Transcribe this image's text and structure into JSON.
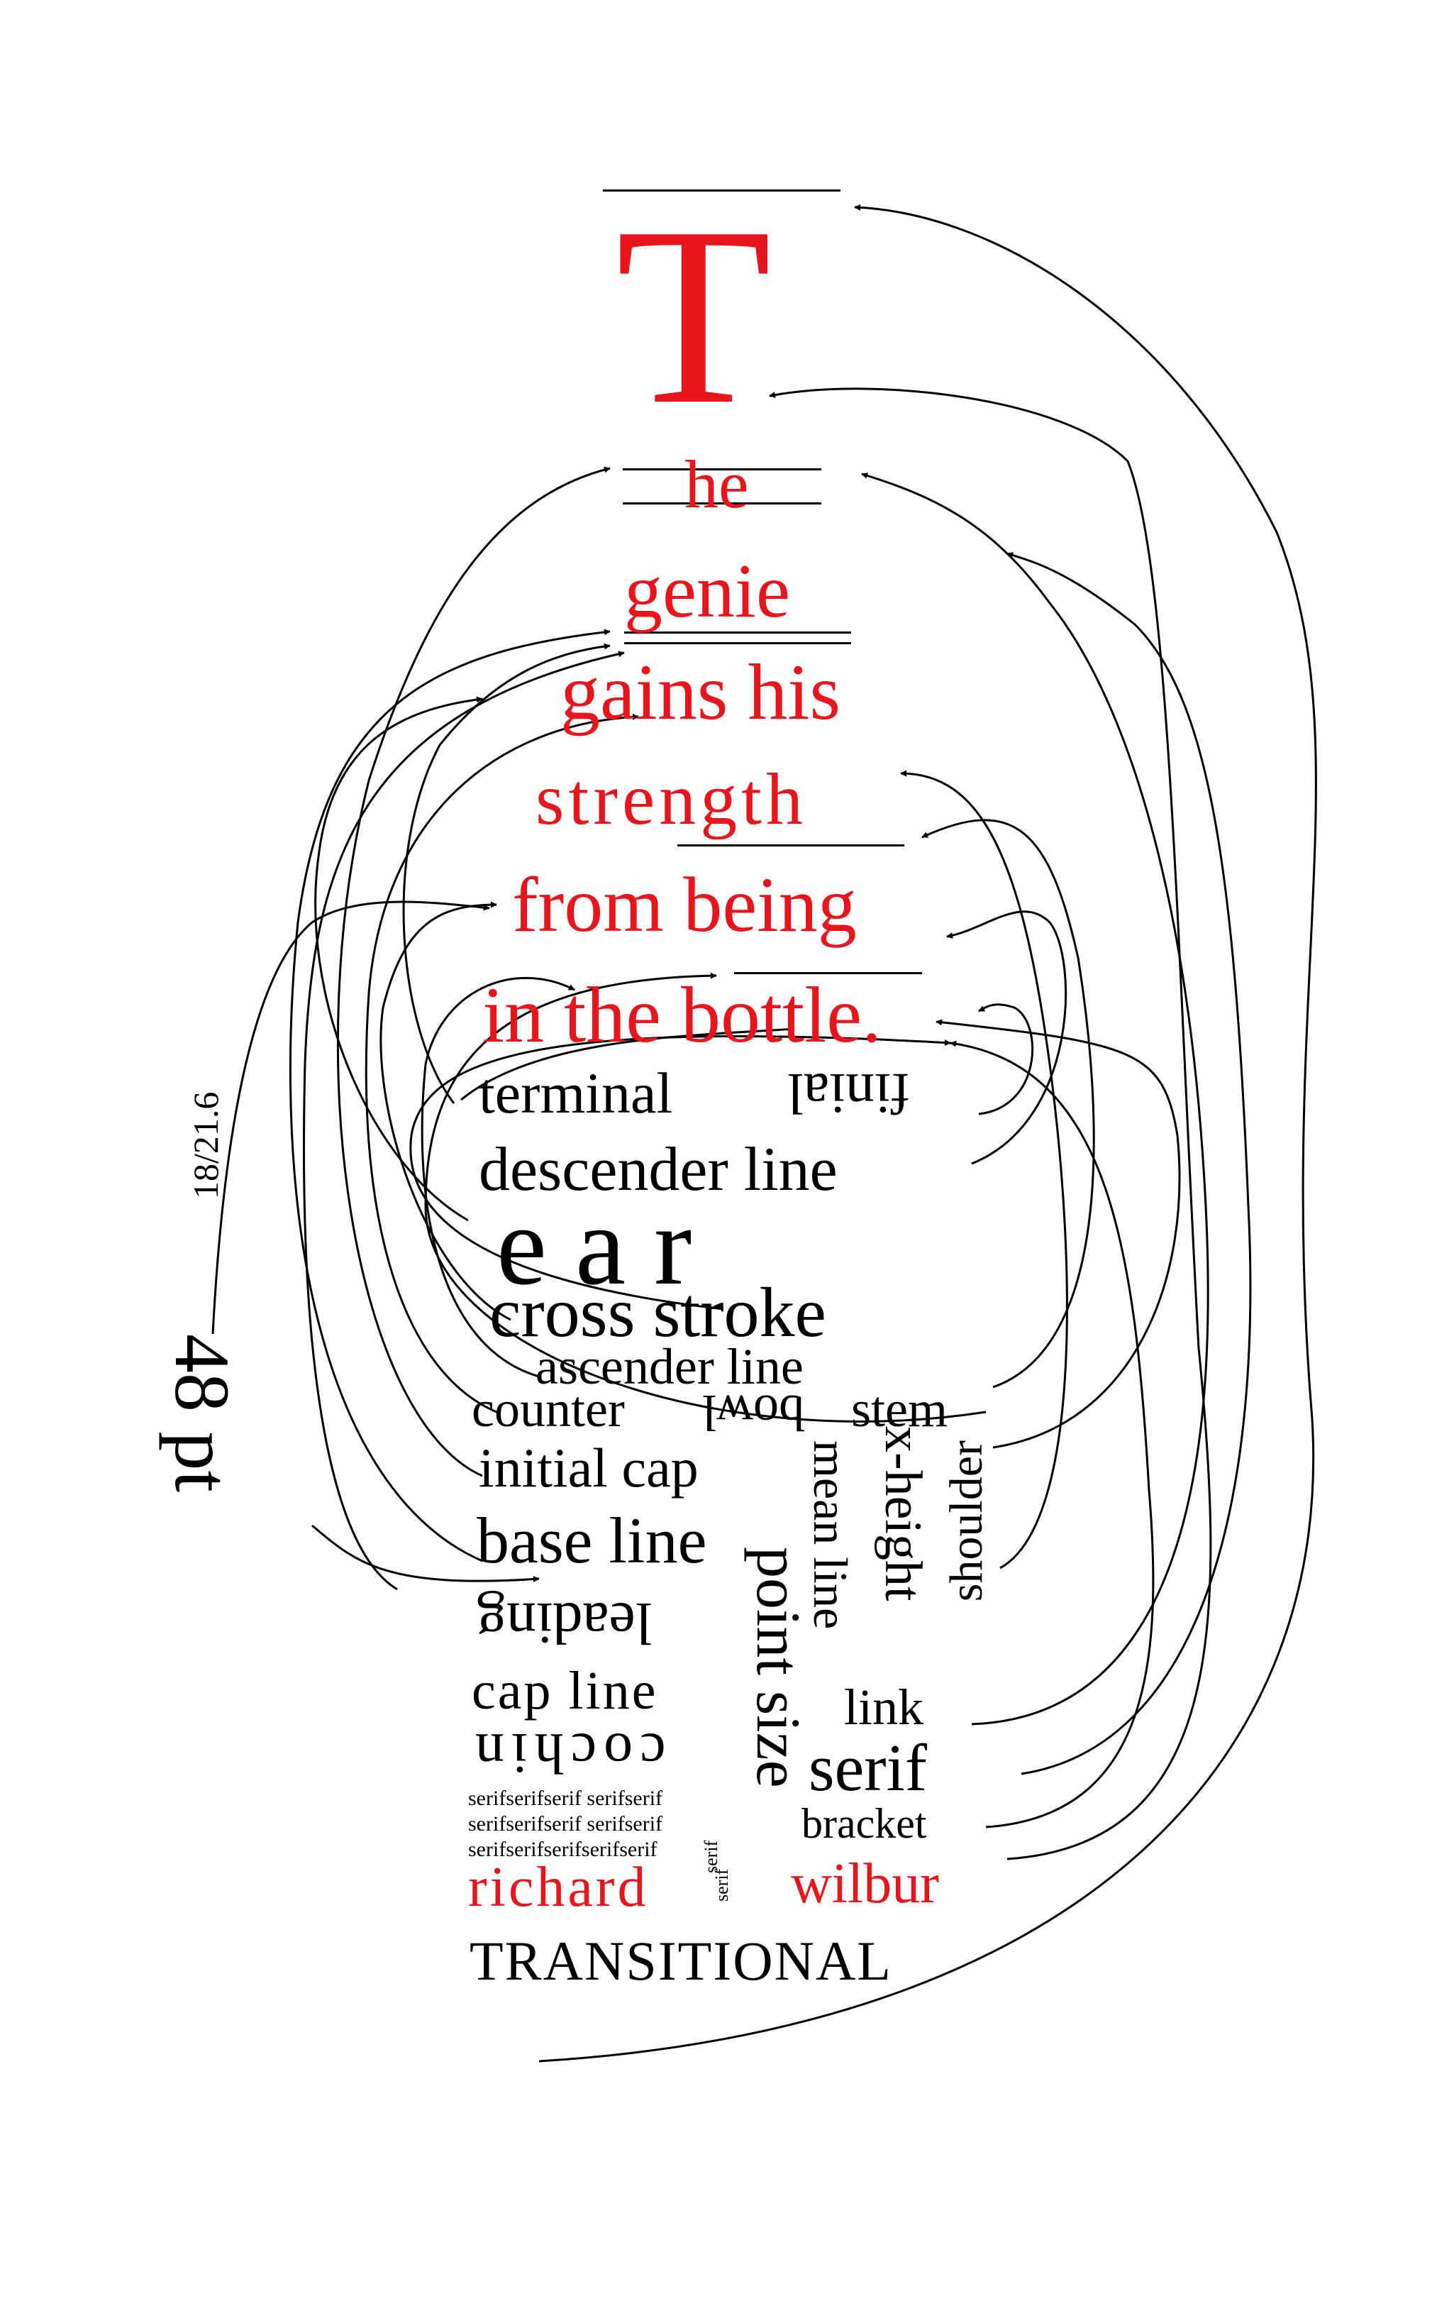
{
  "colors": {
    "accent": "#e8161c",
    "ink": "#000000",
    "paper": "#ffffff"
  },
  "poem": {
    "initial": "T",
    "lines": [
      "he",
      "genie",
      "gains his",
      "strength",
      "from being",
      "in the bottle."
    ]
  },
  "terms": {
    "terminal": "terminal",
    "finial": "finial",
    "descender_line": "descender line",
    "ear": "e a r",
    "cross_stroke": "cross stroke",
    "ascender_line": "ascender line",
    "counter": "counter",
    "bowl": "bowl",
    "stem": "stem",
    "initial_cap": "initial cap",
    "base_line": "base line",
    "leading": "leading",
    "cap_line": "cap line",
    "cochin": "cochin",
    "point_size": "point size",
    "mean_line": "mean line",
    "x_height": "x-height",
    "shoulder": "shoulder",
    "link": "link",
    "serif": "serif",
    "bracket": "bracket",
    "serif_rows": [
      "serifserifserif serifserif",
      "serifserifserif serifserif",
      "serifserifserifserifserif"
    ],
    "serif_small_a": "serif",
    "serif_small_b": "serif",
    "richard": "richard",
    "wilbur": "wilbur",
    "transitional": "TRANSITIONAL"
  },
  "side_labels": {
    "leading_value": "18/21.6",
    "size_value": "48 pt"
  }
}
